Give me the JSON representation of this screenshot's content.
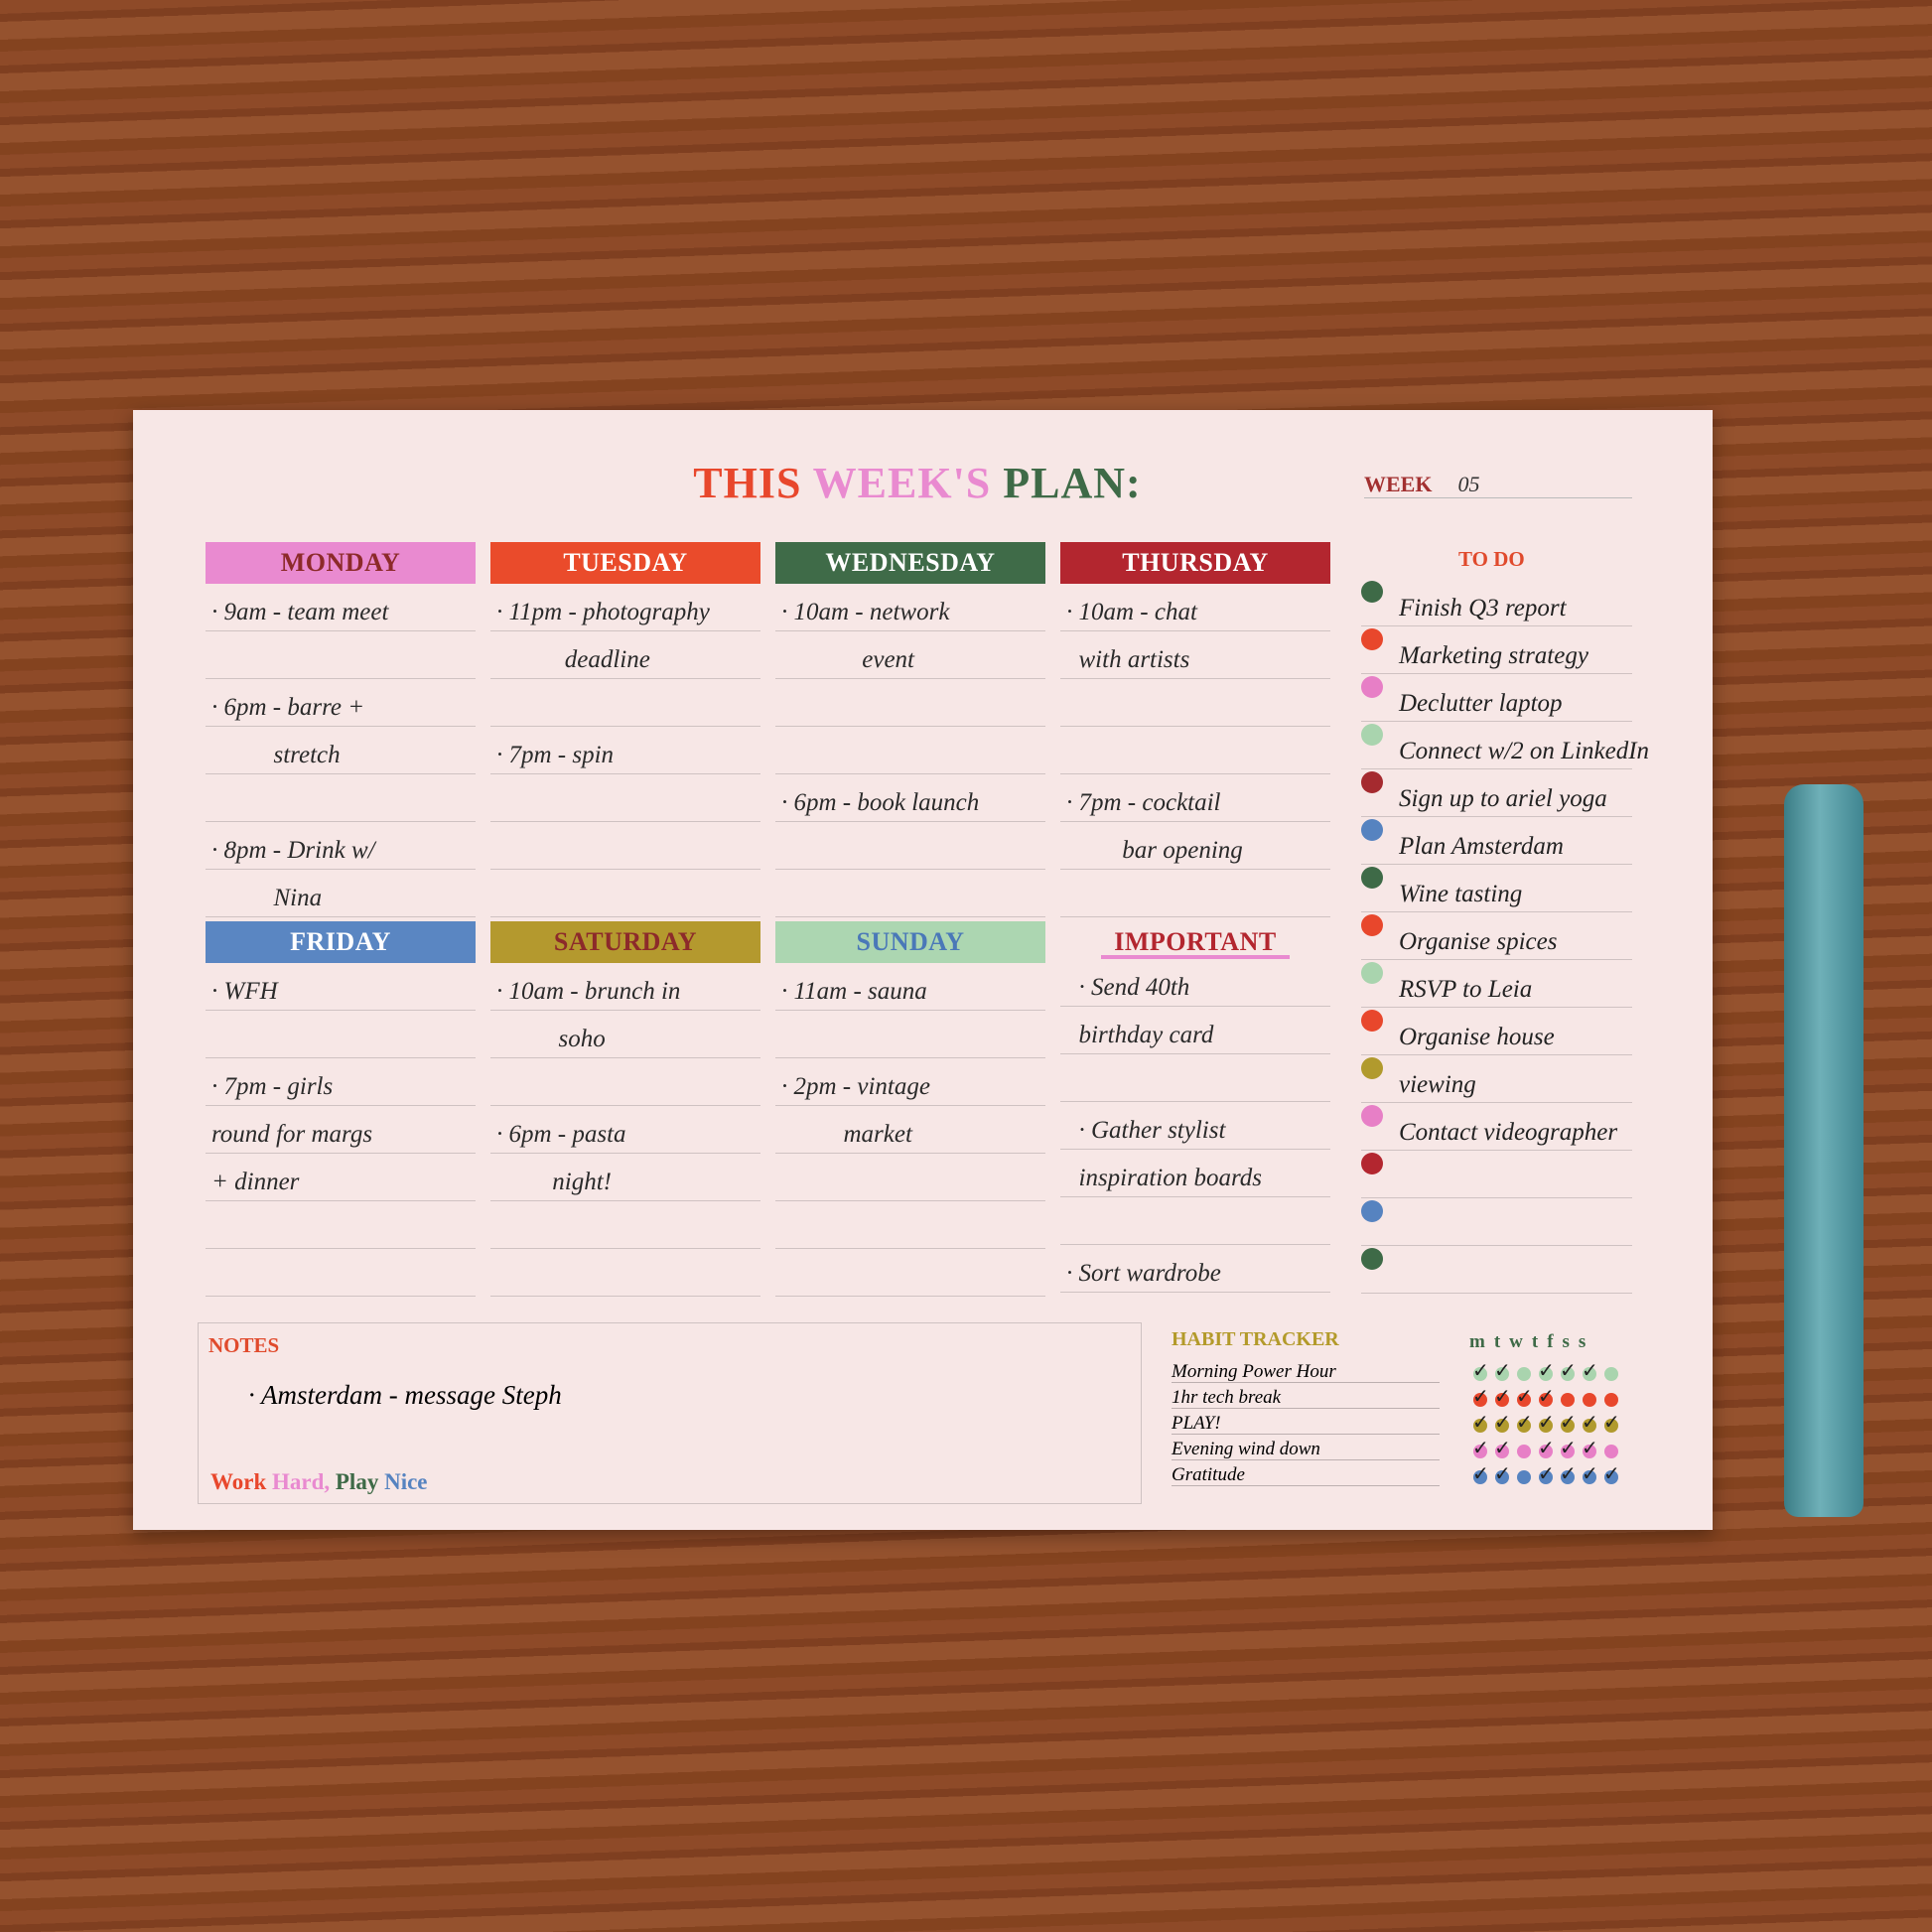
{
  "title": {
    "part1": "THIS ",
    "part2": "WEEK'S ",
    "part3": "PLAN:"
  },
  "week": {
    "label": "WEEK",
    "value": "05"
  },
  "colors": {
    "red": "#e8472c",
    "pink": "#e77fc6",
    "green": "#3e6a47",
    "crimson": "#b3262f",
    "blue": "#5683c0",
    "olive": "#b19a2d",
    "mint": "#a9d4ae"
  },
  "days": [
    {
      "name": "MONDAY",
      "color": "#e98ad0",
      "text_color": "#8c2a2a",
      "lines": [
        "· 9am - team meet",
        "",
        "· 6pm - barre +",
        "          stretch",
        "",
        "· 8pm - Drink w/",
        "          Nina"
      ]
    },
    {
      "name": "TUESDAY",
      "color": "#ea4b2b",
      "text_color": "#ffffff",
      "lines": [
        "· 11pm - photography",
        "           deadline",
        "",
        "· 7pm - spin",
        "",
        "",
        ""
      ]
    },
    {
      "name": "WEDNESDAY",
      "color": "#3f6b48",
      "text_color": "#ffffff",
      "lines": [
        "· 10am - network",
        "             event",
        "",
        "",
        "· 6pm - book launch",
        "",
        ""
      ]
    },
    {
      "name": "THURSDAY",
      "color": "#b3262f",
      "text_color": "#ffffff",
      "lines": [
        "· 10am - chat",
        "  with artists",
        "",
        "",
        "· 7pm - cocktail",
        "         bar opening",
        ""
      ]
    },
    {
      "name": "FRIDAY",
      "color": "#5a86c2",
      "text_color": "#ffffff",
      "lines": [
        "· WFH",
        "",
        "· 7pm - girls",
        "round for margs",
        "+ dinner",
        "",
        ""
      ]
    },
    {
      "name": "SATURDAY",
      "color": "#b4992e",
      "text_color": "#8c2a2a",
      "lines": [
        "· 10am - brunch in",
        "          soho",
        "",
        "· 6pm - pasta",
        "         night!",
        "",
        ""
      ]
    },
    {
      "name": "SUNDAY",
      "color": "#acd6b1",
      "text_color": "#4a78b8",
      "lines": [
        "· 11am - sauna",
        "",
        "· 2pm - vintage",
        "          market",
        "",
        "",
        ""
      ]
    },
    {
      "name": "IMPORTANT",
      "color": "",
      "text_color": "#b3262f",
      "lines": [
        "  · Send 40th",
        "  birthday card",
        "",
        "  · Gather stylist",
        "  inspiration boards",
        "",
        "· Sort wardrobe"
      ]
    }
  ],
  "todo": {
    "heading": "TO DO",
    "items": [
      {
        "text": "Finish Q3 report",
        "color": "#3e6a47"
      },
      {
        "text": "Marketing strategy",
        "color": "#e8472c"
      },
      {
        "text": "Declutter laptop",
        "color": "#e77fc6"
      },
      {
        "text": "Connect w/2 on LinkedIn",
        "color": "#a9d4ae"
      },
      {
        "text": "Sign up to ariel yoga",
        "color": "#a52a2f"
      },
      {
        "text": "Plan Amsterdam",
        "color": "#5683c0"
      },
      {
        "text": "Wine tasting",
        "color": "#3e6a47"
      },
      {
        "text": "Organise spices",
        "color": "#e8472c"
      },
      {
        "text": "RSVP to Leia",
        "color": "#a9d4ae"
      },
      {
        "text": "Organise house",
        "color": "#e8472c"
      },
      {
        "text": "viewing",
        "color": "#b19a2d"
      },
      {
        "text": "Contact videographer",
        "color": "#e77fc6"
      },
      {
        "text": "",
        "color": "#b3262f"
      },
      {
        "text": "",
        "color": "#5683c0"
      },
      {
        "text": "",
        "color": "#3e6a47"
      }
    ]
  },
  "notes": {
    "heading": "NOTES",
    "text": "· Amsterdam - message Steph",
    "motto": {
      "w1": "Work ",
      "w2": "Hard, ",
      "w3": "Play ",
      "w4": "Nice"
    }
  },
  "habit": {
    "heading": "HABIT TRACKER",
    "days": "mtwtfss",
    "rows": [
      {
        "name": "Morning Power Hour",
        "color": "#a9d4ae",
        "checks": [
          1,
          1,
          0,
          1,
          1,
          1,
          0
        ]
      },
      {
        "name": "1hr tech break",
        "color": "#e8472c",
        "checks": [
          1,
          1,
          1,
          1,
          0,
          0,
          0
        ]
      },
      {
        "name": "PLAY!",
        "color": "#b19a2d",
        "checks": [
          1,
          1,
          1,
          1,
          1,
          1,
          1
        ]
      },
      {
        "name": "Evening wind down",
        "color": "#e77fc6",
        "checks": [
          1,
          1,
          0,
          1,
          1,
          1,
          0
        ]
      },
      {
        "name": "Gratitude",
        "color": "#5683c0",
        "checks": [
          1,
          1,
          0,
          1,
          1,
          1,
          1
        ]
      }
    ]
  }
}
